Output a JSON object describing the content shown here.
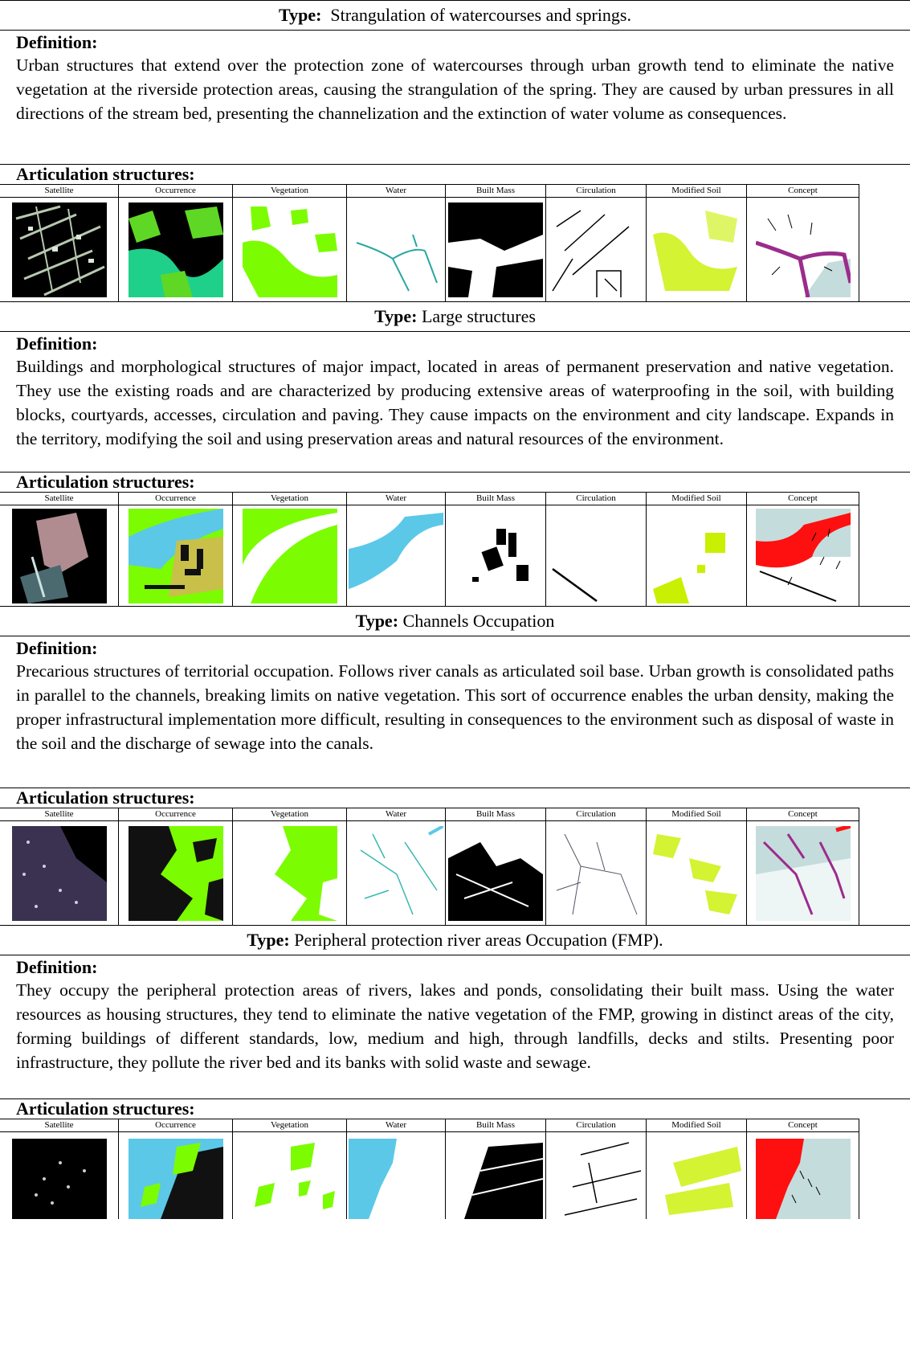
{
  "columns": [
    "Satellite",
    "Occurrence",
    "Vegetation",
    "Water",
    "Built Mass",
    "Circulation",
    "Modified Soil",
    "Concept"
  ],
  "labels": {
    "type": "Type:",
    "definition": "Definition:",
    "articulation": "Articulation structures:"
  },
  "sections": [
    {
      "type_text": "Strangulation of watercourses and springs.",
      "definition": "Urban structures that extend over the protection zone of watercourses through urban growth tend to eliminate the native vegetation at the riverside protection areas, causing the strangulation of the spring. They are caused by urban pressures in all directions of the stream bed, presenting the channelization and the extinction of water volume as consequences."
    },
    {
      "type_text": "Large structures",
      "definition": "Buildings and morphological structures of major impact, located in areas of permanent preservation and native vegetation. They use the existing roads and are characterized by producing extensive areas of waterproofing in the soil, with building blocks, courtyards, accesses, circulation and paving. They cause impacts on the environment and city landscape. Expands in the territory, modifying the soil and using preservation areas and natural resources of the environment."
    },
    {
      "type_text": "Channels Occupation",
      "definition": "Precarious structures of territorial occupation. Follows river canals as articulated soil base. Urban growth is consolidated paths  in parallel to the channels, breaking limits on native vegetation. This sort of occurrence enables the urban density, making the proper infrastructural implementation more difficult, resulting in consequences to the environment such as disposal of waste in the soil and the discharge of sewage into the canals."
    },
    {
      "type_text": "Peripheral protection river areas Occupation (FMP).",
      "definition": "They occupy the peripheral protection areas of rivers, lakes and ponds, consolidating their built mass. Using the water resources as housing structures, they tend to eliminate the native vegetation of the FMP, growing in distinct areas of the city, forming buildings of different standards, low, medium and high, through landfills, decks and stilts. Presenting poor infrastructure, they pollute the river bed and its banks with solid waste and sewage."
    }
  ],
  "colors": {
    "vegetation": "#7CFC00",
    "water": "#5BC8E8",
    "soil": "#C8F000",
    "concept_red": "#FF1010",
    "concept_purple": "#9B2C8C",
    "concept_bg": "#C5DCDC"
  }
}
